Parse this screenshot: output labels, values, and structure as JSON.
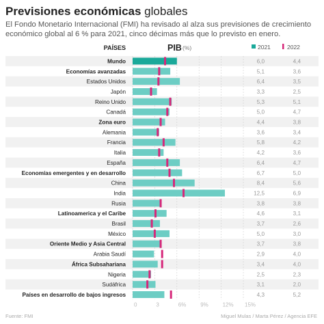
{
  "header": {
    "title_bold": "Previsiones económicas",
    "title_rest": "globales",
    "subtitle": "El Fondo Monetario Internacional (FMI) ha revisado al alza sus previsiones de crecimiento económico global al 6 % para 2021, cinco décimas más que lo previsto en enero."
  },
  "footer": {
    "source": "Fuente: FMI",
    "credit": "Miguel Mulas / Marta Pérez / Agencia EFE"
  },
  "colors": {
    "bar_2021": "#6dcdc4",
    "bar_2021_highlight": "#1aa99a",
    "marker_2022": "#d6287a",
    "stripe": "#f1f1f1",
    "grid": "#cfcfcf"
  },
  "chart_data": {
    "type": "bar",
    "orientation": "horizontal",
    "column_header": "PAÍSES",
    "xlabel": "PIB",
    "xunit": "(%)",
    "xlim": [
      0,
      15
    ],
    "xticks": [
      "0",
      "3",
      "6%",
      "9%",
      "12%",
      "15%"
    ],
    "legend": [
      "2021",
      "2022"
    ],
    "categories": [
      "Mundo",
      "Economías avanzadas",
      "Estados Unidos",
      "Japón",
      "Reino Unido",
      "Canadá",
      "Zona euro",
      "Alemania",
      "Francia",
      "Italia",
      "España",
      "Economías emergentes y en desarrollo",
      "China",
      "India",
      "Rusia",
      "Latinoamerica y el Caribe",
      "Brasil",
      "México",
      "Oriente Medio y Asia Central",
      "Arabia Saudí",
      "África Subsahariana",
      "Nigeria",
      "Sudáfrica",
      "Países en desarrollo de bajos ingresos"
    ],
    "bold": [
      true,
      true,
      false,
      false,
      false,
      false,
      true,
      false,
      false,
      false,
      false,
      true,
      false,
      false,
      false,
      true,
      false,
      false,
      true,
      false,
      true,
      false,
      false,
      true
    ],
    "series": [
      {
        "name": "2021",
        "values": [
          6.0,
          5.1,
          6.4,
          3.3,
          5.3,
          5.0,
          4.4,
          3.6,
          5.8,
          4.2,
          6.4,
          6.7,
          8.4,
          12.5,
          3.8,
          4.6,
          3.7,
          5.0,
          3.7,
          2.9,
          3.4,
          2.5,
          3.1,
          4.3
        ]
      },
      {
        "name": "2022",
        "values": [
          4.4,
          3.6,
          3.5,
          2.5,
          5.1,
          4.7,
          3.8,
          3.4,
          4.2,
          3.6,
          4.7,
          5.0,
          5.6,
          6.9,
          3.8,
          3.1,
          2.6,
          3.0,
          3.8,
          4.0,
          4.0,
          2.3,
          2.0,
          5.2
        ]
      }
    ],
    "labels_2021": [
      "6,0",
      "5,1",
      "6,4",
      "3,3",
      "5,3",
      "5,0",
      "4,4",
      "3,6",
      "5,8",
      "4,2",
      "6,4",
      "6,7",
      "8,4",
      "12,5",
      "3,8",
      "4,6",
      "3,7",
      "5,0",
      "3,7",
      "2,9",
      "3,4",
      "2,5",
      "3,1",
      "4,3"
    ],
    "labels_2022": [
      "4,4",
      "3,6",
      "3,5",
      "2,5",
      "5,1",
      "4,7",
      "3,8",
      "3,4",
      "4,2",
      "3,6",
      "4,7",
      "5,0",
      "5,6",
      "6,9",
      "3,8",
      "3,1",
      "2,6",
      "3,0",
      "3,8",
      "4,0",
      "4,0",
      "2,3",
      "2,0",
      "5,2"
    ]
  }
}
